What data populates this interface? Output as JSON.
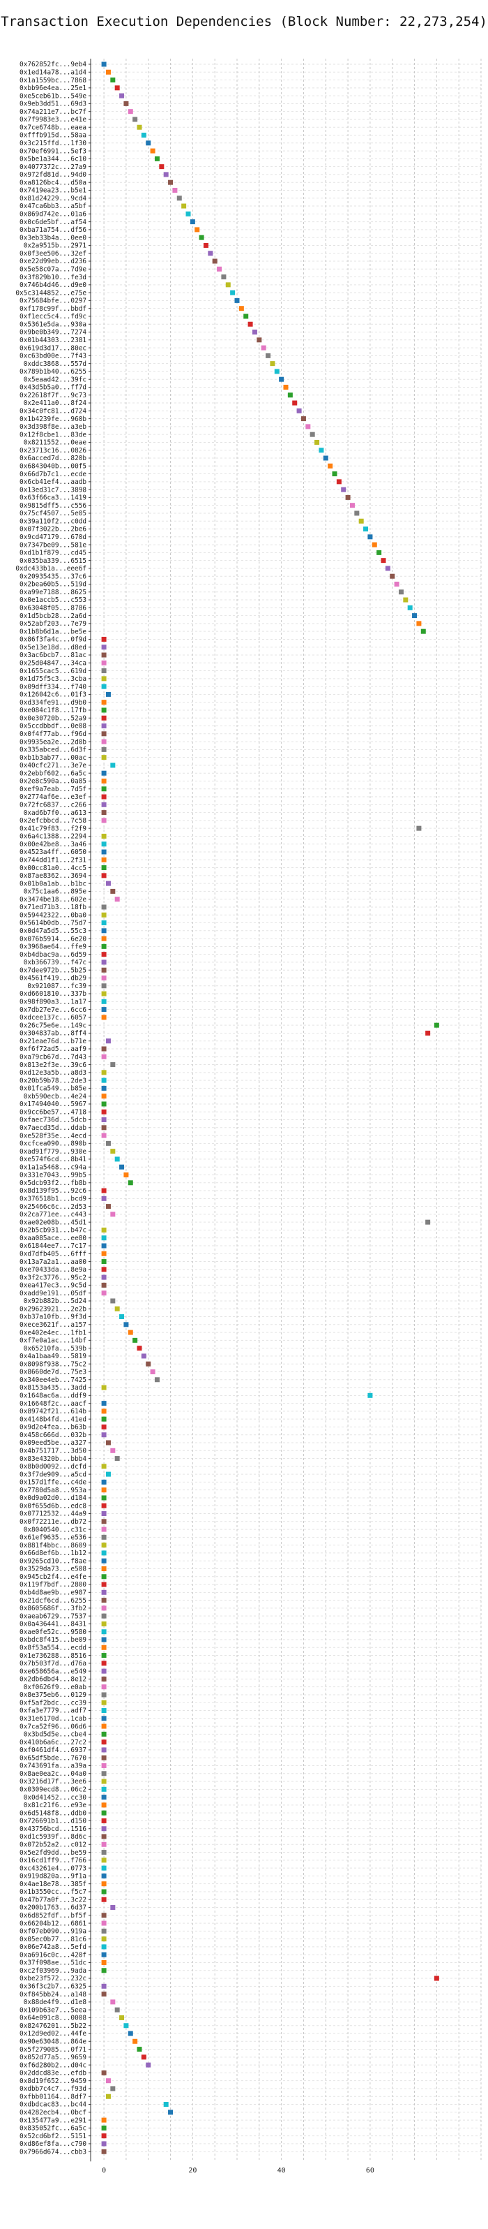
{
  "chart_data": {
    "type": "scatter",
    "title": "Transaction Execution Dependencies (Block Number: 22,273,254)",
    "xlabel": "",
    "ylabel": "",
    "xlim": [
      -3,
      85
    ],
    "xticks": [
      0,
      20,
      40,
      60
    ],
    "grid": true,
    "legend": "none",
    "palette": [
      "#1f77b4",
      "#ff7f0e",
      "#2ca02c",
      "#d62728",
      "#9467bd",
      "#8c564b",
      "#e377c2",
      "#7f7f7f",
      "#bcbd22",
      "#17becf"
    ],
    "transactions": [
      {
        "label": "0x762852fc...9eb4",
        "x": 0
      },
      {
        "label": "0x1ed14a78...a1d4",
        "x": 1
      },
      {
        "label": "0x1a1559bc...7868",
        "x": 2
      },
      {
        "label": "0xbb96e4ea...25e1",
        "x": 3
      },
      {
        "label": "0xe5ceb61b...549e",
        "x": 4
      },
      {
        "label": "0x9eb3dd51...69d3",
        "x": 5
      },
      {
        "label": "0x74a211e7...bc7f",
        "x": 6
      },
      {
        "label": "0x7f9983e3...e41e",
        "x": 7
      },
      {
        "label": "0x7ce6748b...eaea",
        "x": 8
      },
      {
        "label": "0xfffb915d...58aa",
        "x": 9
      },
      {
        "label": "0x3c215ffd...1f30",
        "x": 10
      },
      {
        "label": "0x70ef6991...5ef3",
        "x": 11
      },
      {
        "label": "0x5be1a344...6c10",
        "x": 12
      },
      {
        "label": "0x4077372c...27a9",
        "x": 13
      },
      {
        "label": "0x972fd81d...94d0",
        "x": 14
      },
      {
        "label": "0xa8126bc4...d50a",
        "x": 15
      },
      {
        "label": "0x7419ea23...b5e1",
        "x": 16
      },
      {
        "label": "0x81d24229...9cd4",
        "x": 17
      },
      {
        "label": "0x47ca6bb3...a5bf",
        "x": 18
      },
      {
        "label": "0x869d742e...01a6",
        "x": 19
      },
      {
        "label": "0x0c6de5bf...af54",
        "x": 20
      },
      {
        "label": "0xba71a754...df56",
        "x": 21
      },
      {
        "label": "0x3eb33b4a...0ee0",
        "x": 22
      },
      {
        "label": "0x2a9515b...2971",
        "x": 23
      },
      {
        "label": "0x0f3ee506...32ef",
        "x": 24
      },
      {
        "label": "0xe22d99eb...d236",
        "x": 25
      },
      {
        "label": "0x5e58c07a...7d9e",
        "x": 26
      },
      {
        "label": "0x3f829b10...fe3d",
        "x": 27
      },
      {
        "label": "0x746b4d46...d9e0",
        "x": 28
      },
      {
        "label": "0x5c3144852...e75e",
        "x": 29
      },
      {
        "label": "0x75684bfe...0297",
        "x": 30
      },
      {
        "label": "0xf178c99f...bbdf",
        "x": 31
      },
      {
        "label": "0xf1ecc5c4...fd9c",
        "x": 32
      },
      {
        "label": "0x5361e5da...930a",
        "x": 33
      },
      {
        "label": "0x9be0b349...7274",
        "x": 34
      },
      {
        "label": "0x01b44303...2381",
        "x": 35
      },
      {
        "label": "0x619d3d17...80ec",
        "x": 36
      },
      {
        "label": "0xc63bd00e...7f43",
        "x": 37
      },
      {
        "label": "0xddc3868...557d",
        "x": 38
      },
      {
        "label": "0x789b1b40...6255",
        "x": 39
      },
      {
        "label": "0x5eaad42...39fc",
        "x": 40
      },
      {
        "label": "0x43d5b5a0...ff7d",
        "x": 41
      },
      {
        "label": "0x22618f7f...9c73",
        "x": 42
      },
      {
        "label": "0x2e411a0...8f24",
        "x": 43
      },
      {
        "label": "0x34c0fc81...d724",
        "x": 44
      },
      {
        "label": "0x1b4239fe...960b",
        "x": 45
      },
      {
        "label": "0x3d398f8e...a3eb",
        "x": 46
      },
      {
        "label": "0x12f8cbe1...83de",
        "x": 47
      },
      {
        "label": "0x8211552...0eae",
        "x": 48
      },
      {
        "label": "0x23713c16...0826",
        "x": 49
      },
      {
        "label": "0x6acced7d...820b",
        "x": 50
      },
      {
        "label": "0x6843040b...00f5",
        "x": 51
      },
      {
        "label": "0x66d7b7c1...ecde",
        "x": 52
      },
      {
        "label": "0x6cb41ef4...aadb",
        "x": 53
      },
      {
        "label": "0x13ed31c7...3898",
        "x": 54
      },
      {
        "label": "0x63f66ca3...1419",
        "x": 55
      },
      {
        "label": "0x9815dff5...c556",
        "x": 56
      },
      {
        "label": "0x75cf4507...5e05",
        "x": 57
      },
      {
        "label": "0x39a110f2...c0dd",
        "x": 58
      },
      {
        "label": "0x07f3022b...2be6",
        "x": 59
      },
      {
        "label": "0x9cd47179...670d",
        "x": 60
      },
      {
        "label": "0x7347be09...581e",
        "x": 61
      },
      {
        "label": "0xd1b1f879...cd45",
        "x": 62
      },
      {
        "label": "0x035ba339...6515",
        "x": 63
      },
      {
        "label": "0xdc433b1a...eee6f",
        "x": 64
      },
      {
        "label": "0x20935435...37c6",
        "x": 65
      },
      {
        "label": "0x2bea60b5...519d",
        "x": 66
      },
      {
        "label": "0xa99e7188...8625",
        "x": 67
      },
      {
        "label": "0x0e1accb5...c553",
        "x": 68
      },
      {
        "label": "0x63048f05...8786",
        "x": 69
      },
      {
        "label": "0x1d5bcb28...2a6d",
        "x": 70
      },
      {
        "label": "0x52abf203...7e79",
        "x": 71
      },
      {
        "label": "0x1b8b6d1a...be5e",
        "x": 72
      },
      {
        "label": "0x86f3fa4c...0f9d",
        "x": 0
      },
      {
        "label": "0x5e13e18d...d8ed",
        "x": 0
      },
      {
        "label": "0x3ac6bcb7...81ac",
        "x": 0
      },
      {
        "label": "0x25d04847...34ca",
        "x": 0
      },
      {
        "label": "0x1655cac5...619d",
        "x": 0
      },
      {
        "label": "0x1d75f5c3...3cba",
        "x": 0
      },
      {
        "label": "0x09dff334...f740",
        "x": 0
      },
      {
        "label": "0x126042c6...01f3",
        "x": 1
      },
      {
        "label": "0xd334fe91...d9b0",
        "x": 0
      },
      {
        "label": "0xe084c1f8...17fb",
        "x": 0
      },
      {
        "label": "0x0e30720b...52a9",
        "x": 0
      },
      {
        "label": "0x5ccdbbdf...0e08",
        "x": 0
      },
      {
        "label": "0x0f4f77ab...f96d",
        "x": 0
      },
      {
        "label": "0x9935ea2e...2d0b",
        "x": 0
      },
      {
        "label": "0x335abced...6d3f",
        "x": 0
      },
      {
        "label": "0xb1b3ab77...00ac",
        "x": 0
      },
      {
        "label": "0x40cfc271...3e7e",
        "x": 2
      },
      {
        "label": "0x2ebbf602...6a5c",
        "x": 0
      },
      {
        "label": "0x2e8c590a...0a85",
        "x": 0
      },
      {
        "label": "0xef9a7eab...7d5f",
        "x": 0
      },
      {
        "label": "0x2774af6e...e3ef",
        "x": 0
      },
      {
        "label": "0x72fc6837...c266",
        "x": 0
      },
      {
        "label": "0xad6b7f0...a613",
        "x": 0
      },
      {
        "label": "0x2efcbbcd...7c58",
        "x": 0
      },
      {
        "label": "0x41c79f83...f2f9",
        "x": 71
      },
      {
        "label": "0x6a4c1388...2294",
        "x": 0
      },
      {
        "label": "0x00e42be8...3a46",
        "x": 0
      },
      {
        "label": "0x4523a4ff...6050",
        "x": 0
      },
      {
        "label": "0x744dd1f1...2f31",
        "x": 0
      },
      {
        "label": "0x00cc81a0...4cc5",
        "x": 0
      },
      {
        "label": "0x87ae8362...3694",
        "x": 0
      },
      {
        "label": "0x01b0a1ab...b1bc",
        "x": 1
      },
      {
        "label": "0x75c1aa6...895e",
        "x": 2
      },
      {
        "label": "0x3474be18...602e",
        "x": 3
      },
      {
        "label": "0x71ed71b3...18fb",
        "x": 0
      },
      {
        "label": "0x59442322...0ba0",
        "x": 0
      },
      {
        "label": "0x5614b0db...75d7",
        "x": 0
      },
      {
        "label": "0x0d47a5d5...55c3",
        "x": 0
      },
      {
        "label": "0x076b5914...6e20",
        "x": 0
      },
      {
        "label": "0x3968ae64...ffe9",
        "x": 0
      },
      {
        "label": "0xb4dbac9a...6d59",
        "x": 0
      },
      {
        "label": "0xb366739...f47c",
        "x": 0
      },
      {
        "label": "0x7dee972b...5b25",
        "x": 0
      },
      {
        "label": "0x4561f419...db29",
        "x": 0
      },
      {
        "label": "0x921087...fc39",
        "x": 0
      },
      {
        "label": "0xd6601810...337b",
        "x": 0
      },
      {
        "label": "0x98f890a3...1a17",
        "x": 0
      },
      {
        "label": "0x7db27e7e...6cc6",
        "x": 0
      },
      {
        "label": "0xdcee137c...6057",
        "x": 0
      },
      {
        "label": "0x26c75e6e...149c",
        "x": 75
      },
      {
        "label": "0x304837ab...8ff4",
        "x": 73
      },
      {
        "label": "0x21eae76d...b71e",
        "x": 1
      },
      {
        "label": "0xf6f72ad5...aaf9",
        "x": 0
      },
      {
        "label": "0xa79cb67d...7d43",
        "x": 0
      },
      {
        "label": "0x813e2f3e...39c6",
        "x": 2
      },
      {
        "label": "0xd12e3a5b...a8d3",
        "x": 0
      },
      {
        "label": "0x20b59b78...2de3",
        "x": 0
      },
      {
        "label": "0x01fca549...b85e",
        "x": 0
      },
      {
        "label": "0xb590ecb...4e24",
        "x": 0
      },
      {
        "label": "0x17494040...5967",
        "x": 0
      },
      {
        "label": "0x9cc6be57...4718",
        "x": 0
      },
      {
        "label": "0xfaec736d...5dcb",
        "x": 0
      },
      {
        "label": "0x7aecd35d...ddab",
        "x": 0
      },
      {
        "label": "0xe528f35e...4ecd",
        "x": 0
      },
      {
        "label": "0xcfcea090...890b",
        "x": 1
      },
      {
        "label": "0xad91f779...930e",
        "x": 2
      },
      {
        "label": "0xe574f6cd...8b41",
        "x": 3
      },
      {
        "label": "0x1a1a5468...c94a",
        "x": 4
      },
      {
        "label": "0x331e7043...99b5",
        "x": 5
      },
      {
        "label": "0x5dcb93f2...fb8b",
        "x": 6
      },
      {
        "label": "0x8d139f95...92c6",
        "x": 0
      },
      {
        "label": "0x376518b1...bcd9",
        "x": 0
      },
      {
        "label": "0x25466c6c...2d53",
        "x": 1
      },
      {
        "label": "0x2ca771ee...c443",
        "x": 2
      },
      {
        "label": "0xae02e08b...45d1",
        "x": 73
      },
      {
        "label": "0x2b5cb931...b47c",
        "x": 0
      },
      {
        "label": "0xaa085ace...ee80",
        "x": 0
      },
      {
        "label": "0x61844ee7...7c17",
        "x": 0
      },
      {
        "label": "0xd7dfb405...6fff",
        "x": 0
      },
      {
        "label": "0x13a7a2a1...aa00",
        "x": 0
      },
      {
        "label": "0xe70433da...8e9a",
        "x": 0
      },
      {
        "label": "0x3f2c3776...95c2",
        "x": 0
      },
      {
        "label": "0xea417ec3...9c5d",
        "x": 0
      },
      {
        "label": "0xadd9e191...05df",
        "x": 0
      },
      {
        "label": "0x92b882b...5d24",
        "x": 2
      },
      {
        "label": "0x29623921...2e2b",
        "x": 3
      },
      {
        "label": "0xb37a10fb...9f3d",
        "x": 4
      },
      {
        "label": "0xece3621f...a157",
        "x": 5
      },
      {
        "label": "0xe402e4ec...1fb1",
        "x": 6
      },
      {
        "label": "0xf7e0a1ac...14bf",
        "x": 7
      },
      {
        "label": "0x65210fa...539b",
        "x": 8
      },
      {
        "label": "0x4a1baa49...5819",
        "x": 9
      },
      {
        "label": "0x8098f938...75c2",
        "x": 10
      },
      {
        "label": "0x8660de7d...75e3",
        "x": 11
      },
      {
        "label": "0x340ee4eb...7425",
        "x": 12
      },
      {
        "label": "0x8153a435...3add",
        "x": 0
      },
      {
        "label": "0x1648ac6a...ddf9",
        "x": 60
      },
      {
        "label": "0x16648f2c...aacf",
        "x": 0
      },
      {
        "label": "0x89742f21...614b",
        "x": 0
      },
      {
        "label": "0x4148b4fd...41ed",
        "x": 0
      },
      {
        "label": "0x9d2e4fea...b63b",
        "x": 0
      },
      {
        "label": "0x458c666d...032b",
        "x": 0
      },
      {
        "label": "0x09eed5be...a327",
        "x": 1
      },
      {
        "label": "0x4b751717...3d50",
        "x": 2
      },
      {
        "label": "0x83e4320b...bbb4",
        "x": 3
      },
      {
        "label": "0x8b0d0092...dcfd",
        "x": 0
      },
      {
        "label": "0x3f7de909...a5cd",
        "x": 1
      },
      {
        "label": "0x157d1ffe...c4de",
        "x": 0
      },
      {
        "label": "0x7780d5a8...953a",
        "x": 0
      },
      {
        "label": "0x0d9a02d0...d184",
        "x": 0
      },
      {
        "label": "0x0f655d6b...edc8",
        "x": 0
      },
      {
        "label": "0x07712532...44a9",
        "x": 0
      },
      {
        "label": "0x0f72211e...db72",
        "x": 0
      },
      {
        "label": "0x8040540...c31c",
        "x": 0
      },
      {
        "label": "0x61ef9635...e536",
        "x": 0
      },
      {
        "label": "0x881f4bbc...8609",
        "x": 0
      },
      {
        "label": "0x66d8ef6b...1b12",
        "x": 0
      },
      {
        "label": "0x9265cd10...f8ae",
        "x": 0
      },
      {
        "label": "0x3529da73...e508",
        "x": 0
      },
      {
        "label": "0x945cb2f4...e4fe",
        "x": 0
      },
      {
        "label": "0x119f7bdf...2800",
        "x": 0
      },
      {
        "label": "0xb4d8ae9b...e987",
        "x": 0
      },
      {
        "label": "0x21dcf6cd...6255",
        "x": 0
      },
      {
        "label": "0x8605686f...3fb2",
        "x": 0
      },
      {
        "label": "0xaeab6729...7537",
        "x": 0
      },
      {
        "label": "0x0a436441...8431",
        "x": 0
      },
      {
        "label": "0xae0fe52c...9580",
        "x": 0
      },
      {
        "label": "0xbdc8f415...be09",
        "x": 0
      },
      {
        "label": "0x8f53a554...ecdd",
        "x": 0
      },
      {
        "label": "0x1e736288...8516",
        "x": 0
      },
      {
        "label": "0x7b503f7d...d76a",
        "x": 0
      },
      {
        "label": "0xe658656a...e549",
        "x": 0
      },
      {
        "label": "0x2db6dbd4...8e12",
        "x": 0
      },
      {
        "label": "0xf0626f9...e0ab",
        "x": 0
      },
      {
        "label": "0x8e375eb6...0129",
        "x": 0
      },
      {
        "label": "0xf5af2bdc...cc39",
        "x": 0
      },
      {
        "label": "0xfa3e7779...adf7",
        "x": 0
      },
      {
        "label": "0x31e6170d...1cab",
        "x": 0
      },
      {
        "label": "0x7ca52f96...06d6",
        "x": 0
      },
      {
        "label": "0x3bd5d5e...cbe4",
        "x": 0
      },
      {
        "label": "0x410b6a6c...27c2",
        "x": 0
      },
      {
        "label": "0xf0461df4...6937",
        "x": 0
      },
      {
        "label": "0x65df5bde...7670",
        "x": 0
      },
      {
        "label": "0x743691fa...a39a",
        "x": 0
      },
      {
        "label": "0x8ae0ea2c...04a0",
        "x": 0
      },
      {
        "label": "0x3216d17f...3ee6",
        "x": 0
      },
      {
        "label": "0x0309ecd8...06c2",
        "x": 0
      },
      {
        "label": "0x0d41452...cc30",
        "x": 0
      },
      {
        "label": "0x81c21f6...e93e",
        "x": 0
      },
      {
        "label": "0x6d5148f8...ddb0",
        "x": 0
      },
      {
        "label": "0x726691b1...d150",
        "x": 0
      },
      {
        "label": "0x43756bcd...1516",
        "x": 0
      },
      {
        "label": "0xd1c5939f...8d6c",
        "x": 0
      },
      {
        "label": "0x072b52a2...c012",
        "x": 0
      },
      {
        "label": "0x5e2fd9dd...be59",
        "x": 0
      },
      {
        "label": "0x16cd1ff9...f766",
        "x": 0
      },
      {
        "label": "0xc43261e4...0773",
        "x": 0
      },
      {
        "label": "0x919d820a...9f1a",
        "x": 0
      },
      {
        "label": "0x4ae18e78...385f",
        "x": 0
      },
      {
        "label": "0x1b3550cc...f5c7",
        "x": 0
      },
      {
        "label": "0x47b77a0f...3c22",
        "x": 0
      },
      {
        "label": "0x200b1763...6d37",
        "x": 2
      },
      {
        "label": "0x6d852fdf...bf5f",
        "x": 0
      },
      {
        "label": "0x66204b12...6861",
        "x": 0
      },
      {
        "label": "0xf07eb090...919a",
        "x": 0
      },
      {
        "label": "0x05ec0b77...81c6",
        "x": 0
      },
      {
        "label": "0x06e742a8...5efd",
        "x": 0
      },
      {
        "label": "0xa6916c0c...420f",
        "x": 0
      },
      {
        "label": "0x37f098ae...51dc",
        "x": 0
      },
      {
        "label": "0xc2f03969...9ada",
        "x": 0
      },
      {
        "label": "0xbe23f572...232c",
        "x": 75
      },
      {
        "label": "0x36f3c2b7...6325",
        "x": 0
      },
      {
        "label": "0xf845bb24...a148",
        "x": 0
      },
      {
        "label": "0x88de4f9...d1e8",
        "x": 2
      },
      {
        "label": "0x109b63e7...5eea",
        "x": 3
      },
      {
        "label": "0x64e091c8...0008",
        "x": 4
      },
      {
        "label": "0x82476201...5b22",
        "x": 5
      },
      {
        "label": "0x12d9ed02...44fe",
        "x": 6
      },
      {
        "label": "0x90e63048...864e",
        "x": 7
      },
      {
        "label": "0x5f279085...0f71",
        "x": 8
      },
      {
        "label": "0x052d77a5...9659",
        "x": 9
      },
      {
        "label": "0xf6d280b2...d04c",
        "x": 10
      },
      {
        "label": "0x2ddcd83e...efdb",
        "x": 0
      },
      {
        "label": "0x8d19f652...9459",
        "x": 1
      },
      {
        "label": "0xdbb7c4c7...f93d",
        "x": 2
      },
      {
        "label": "0xfbb01164...8df7",
        "x": 1
      },
      {
        "label": "0xdbdcac83...bc44",
        "x": 14
      },
      {
        "label": "0x4282ecb4...0bcf",
        "x": 15
      },
      {
        "label": "0x135477a9...e291",
        "x": 0
      },
      {
        "label": "0x835052fc...6a5c",
        "x": 0
      },
      {
        "label": "0x52cd6bf2...5151",
        "x": 0
      },
      {
        "label": "0xd86ef8fa...c790",
        "x": 0
      },
      {
        "label": "0x7966d674...cbb3",
        "x": 0
      }
    ]
  }
}
